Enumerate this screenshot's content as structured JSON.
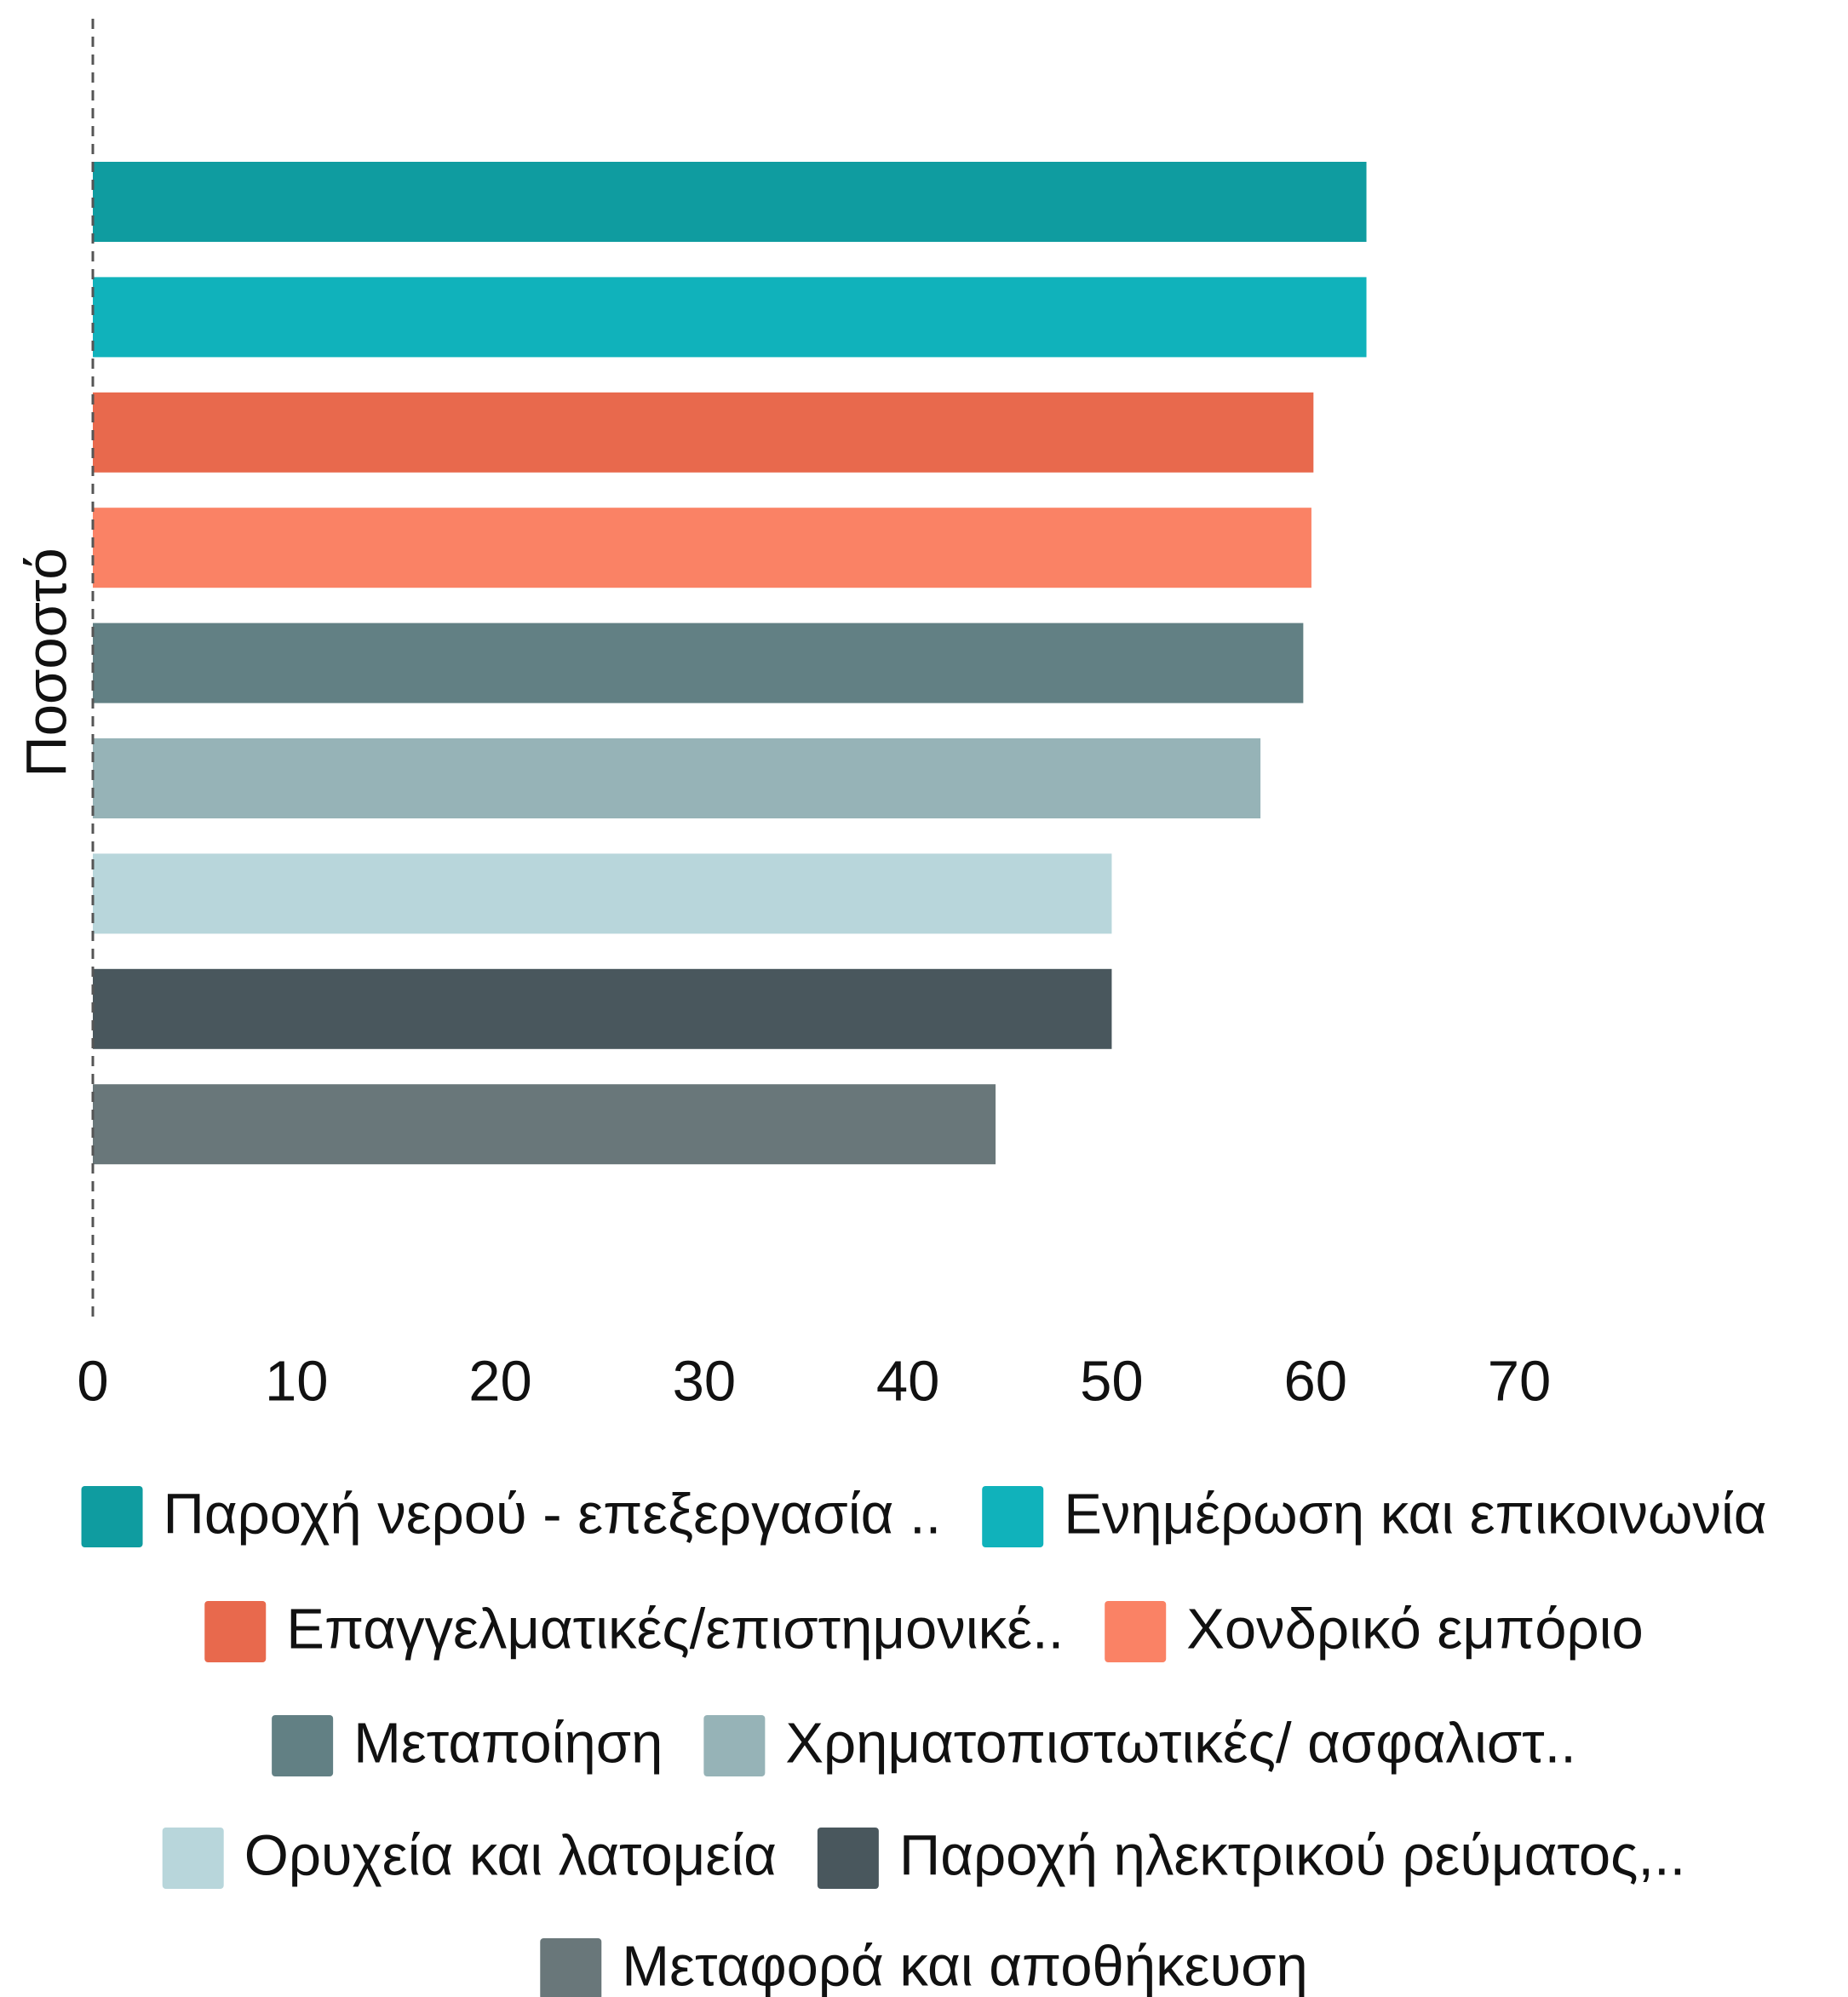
{
  "chart_data": {
    "type": "bar",
    "orientation": "horizontal",
    "ylabel": "Ποσοστό",
    "xlim": [
      0,
      70
    ],
    "xticks": [
      0,
      10,
      20,
      30,
      40,
      50,
      60,
      70
    ],
    "series": [
      {
        "name": "Παροχή νερού - επεξεργασία ..",
        "color": "#0f9ca0",
        "values": [
          62.5
        ]
      },
      {
        "name": "Ενημέρωση και επικοινωνία",
        "color": "#10b2bb",
        "values": [
          62.5
        ]
      },
      {
        "name": "Επαγγελματικές/επιστημονικέ..",
        "color": "#e8694d",
        "values": [
          59.9
        ]
      },
      {
        "name": "Χονδρικό εμπόριο",
        "color": "#fa8265",
        "values": [
          59.8
        ]
      },
      {
        "name": "Μεταποίηση",
        "color": "#628084",
        "values": [
          59.4
        ]
      },
      {
        "name": "Χρηματοπιστωτικές/ ασφαλιστ..",
        "color": "#96b3b7",
        "values": [
          57.3
        ]
      },
      {
        "name": "Ορυχεία και λατομεία",
        "color": "#b8d6db",
        "values": [
          50
        ]
      },
      {
        "name": "Παροχή ηλεκτρικού ρεύματος,..",
        "color": "#49575d",
        "values": [
          50
        ]
      },
      {
        "name": "Μεταφορά και αποθήκευση",
        "color": "#69777a",
        "values": [
          44.3
        ]
      }
    ]
  }
}
